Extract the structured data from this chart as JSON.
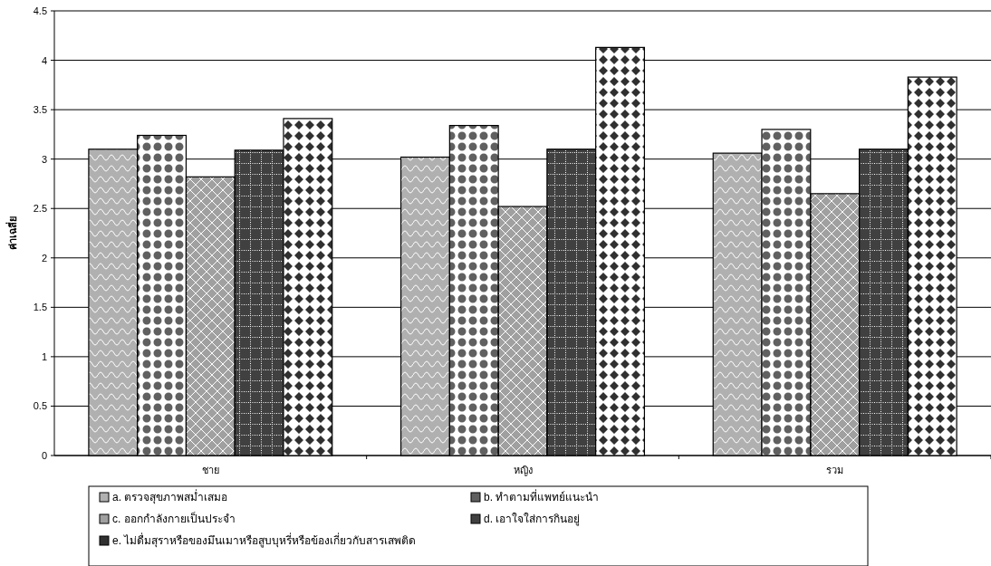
{
  "chart_data": {
    "type": "bar",
    "ylabel": "ค่าเฉลี่ย",
    "categories": [
      "ชาย",
      "หญิง",
      "รวม"
    ],
    "series": [
      {
        "name": "a. ตรวจสุขภาพสม่ำเสมอ",
        "color": "#b0b0b0",
        "values": [
          3.1,
          3.02,
          3.06
        ]
      },
      {
        "name": "b. ทำตามที่แพทย์แนะนำ",
        "color": "#606060",
        "values": [
          3.24,
          3.34,
          3.3
        ]
      },
      {
        "name": "c. ออกกำลังกายเป็นประจำ",
        "color": "#a0a0a0",
        "values": [
          2.82,
          2.52,
          2.65
        ]
      },
      {
        "name": "d. เอาใจใส่การกินอยู่",
        "color": "#404040",
        "values": [
          3.09,
          3.1,
          3.1
        ]
      },
      {
        "name": "e. ไม่ดื่มสุราหรือของมึนเมาหรือสูบบุหรี่หรือข้องเกี่ยวกับสารเสพติด",
        "color": "#303030",
        "values": [
          3.41,
          4.13,
          3.83
        ]
      }
    ],
    "ylim": [
      0,
      4.5
    ],
    "yticks": [
      0,
      0.5,
      1,
      1.5,
      2,
      2.5,
      3,
      3.5,
      4,
      4.5
    ],
    "grid": "y",
    "legend": "bottom"
  }
}
